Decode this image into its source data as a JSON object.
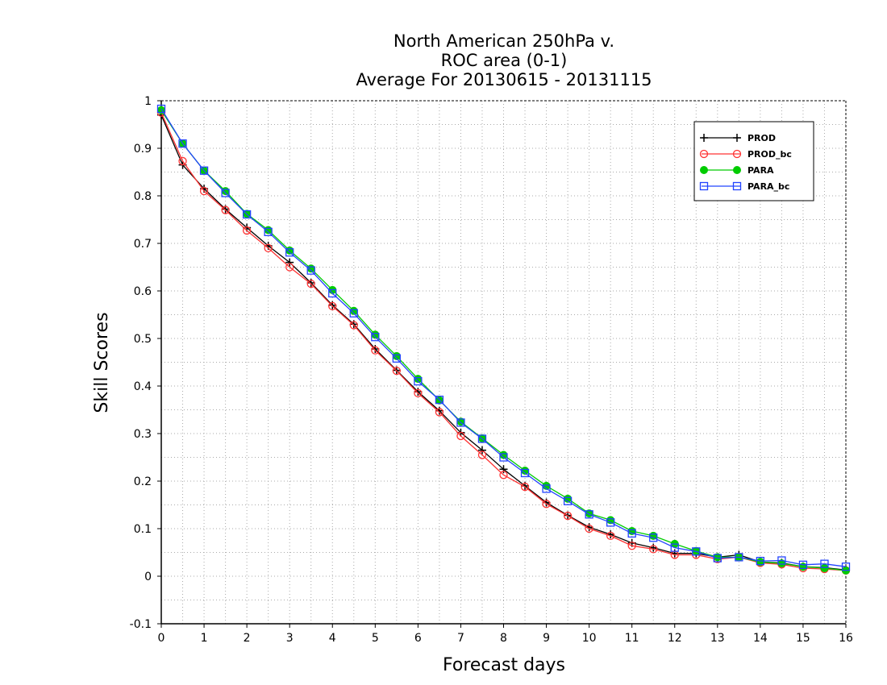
{
  "chart_data": {
    "type": "line",
    "title": [
      "North American 250hPa v.",
      "ROC area (0-1)",
      "Average For 20130615 - 20131115"
    ],
    "xlabel": "Forecast days",
    "ylabel": "Skill Scores",
    "xlim": [
      0,
      16
    ],
    "ylim": [
      -0.1,
      1
    ],
    "xticks": [
      "0",
      "1",
      "2",
      "3",
      "4",
      "5",
      "6",
      "7",
      "8",
      "9",
      "10",
      "11",
      "12",
      "13",
      "14",
      "15",
      "16"
    ],
    "yticks": [
      "-0.1",
      "0",
      "0.1",
      "0.2",
      "0.3",
      "0.4",
      "0.5",
      "0.6",
      "0.7",
      "0.8",
      "0.9",
      "1"
    ],
    "grid": true,
    "legend_position": "top-right",
    "x": [
      0,
      0.5,
      1,
      1.5,
      2,
      2.5,
      3,
      3.5,
      4,
      4.5,
      5,
      5.5,
      6,
      6.5,
      7,
      7.5,
      8,
      8.5,
      9,
      9.5,
      10,
      10.5,
      11,
      11.5,
      12,
      12.5,
      13,
      13.5,
      14,
      14.5,
      15,
      15.5,
      16
    ],
    "series": [
      {
        "name": "PROD",
        "color": "#000000",
        "marker": "plus",
        "values": [
          0.97,
          0.865,
          0.815,
          0.772,
          0.733,
          0.695,
          0.66,
          0.617,
          0.57,
          0.53,
          0.478,
          0.433,
          0.388,
          0.348,
          0.302,
          0.265,
          0.225,
          0.19,
          0.155,
          0.128,
          0.103,
          0.088,
          0.07,
          0.06,
          0.048,
          0.048,
          0.04,
          0.045,
          0.03,
          0.028,
          0.02,
          0.018,
          0.013
        ]
      },
      {
        "name": "PROD_bc",
        "color": "#ff3333",
        "marker": "circle",
        "values": [
          0.975,
          0.873,
          0.81,
          0.77,
          0.727,
          0.69,
          0.65,
          0.615,
          0.568,
          0.528,
          0.475,
          0.432,
          0.385,
          0.345,
          0.295,
          0.255,
          0.213,
          0.188,
          0.152,
          0.127,
          0.1,
          0.085,
          0.064,
          0.057,
          0.045,
          0.045,
          0.036,
          0.04,
          0.028,
          0.025,
          0.017,
          0.015,
          0.012
        ]
      },
      {
        "name": "PARA",
        "color": "#00cc00",
        "marker": "dot",
        "values": [
          0.98,
          0.91,
          0.853,
          0.81,
          0.762,
          0.728,
          0.685,
          0.647,
          0.602,
          0.558,
          0.508,
          0.463,
          0.415,
          0.37,
          0.325,
          0.29,
          0.255,
          0.222,
          0.19,
          0.163,
          0.132,
          0.118,
          0.095,
          0.085,
          0.068,
          0.053,
          0.04,
          0.04,
          0.03,
          0.027,
          0.02,
          0.017,
          0.012
        ]
      },
      {
        "name": "PARA_bc",
        "color": "#2244ff",
        "marker": "square",
        "values": [
          0.983,
          0.91,
          0.853,
          0.806,
          0.761,
          0.724,
          0.681,
          0.643,
          0.595,
          0.553,
          0.503,
          0.458,
          0.41,
          0.371,
          0.323,
          0.289,
          0.25,
          0.217,
          0.184,
          0.158,
          0.13,
          0.113,
          0.09,
          0.081,
          0.06,
          0.052,
          0.038,
          0.04,
          0.032,
          0.033,
          0.024,
          0.026,
          0.02
        ]
      }
    ]
  }
}
